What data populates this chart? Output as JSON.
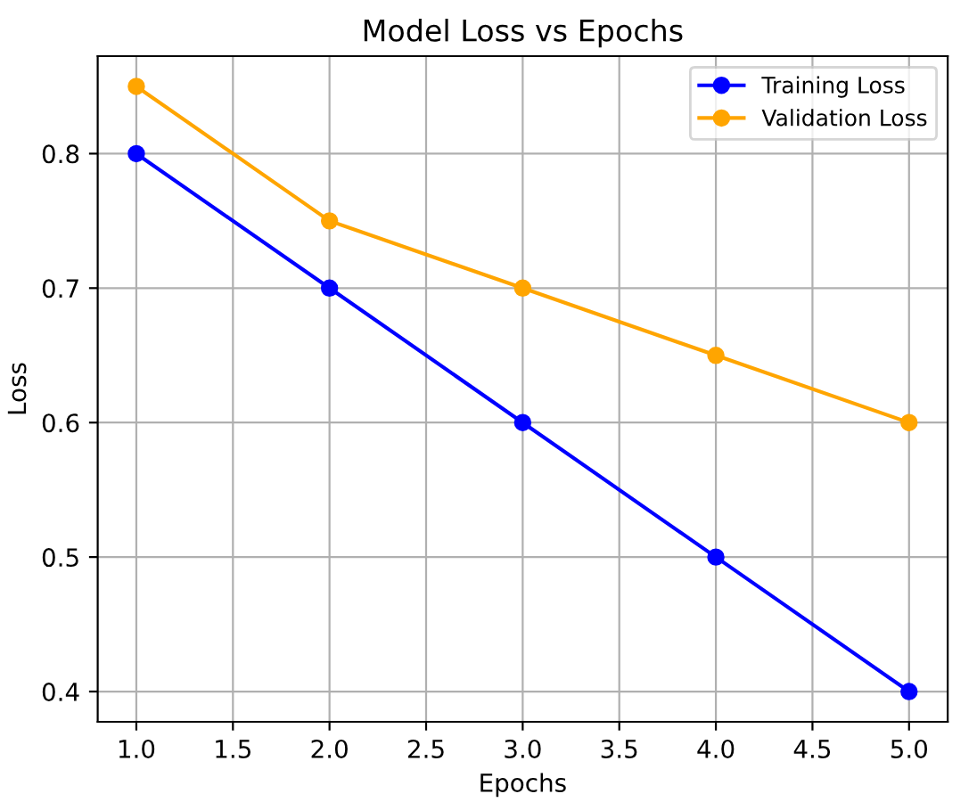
{
  "chart_data": {
    "type": "line",
    "title": "Model Loss vs Epochs",
    "xlabel": "Epochs",
    "ylabel": "Loss",
    "x": [
      1,
      2,
      3,
      4,
      5
    ],
    "series": [
      {
        "name": "Training Loss",
        "color": "#0000ff",
        "values": [
          0.8,
          0.7,
          0.6,
          0.5,
          0.4
        ]
      },
      {
        "name": "Validation Loss",
        "color": "#ffa500",
        "values": [
          0.85,
          0.75,
          0.7,
          0.65,
          0.6
        ]
      }
    ],
    "xlim": [
      0.8,
      5.2
    ],
    "xticks": [
      {
        "value": 1,
        "label": "1.0"
      },
      1.5,
      {
        "value": 2,
        "label": "2.0"
      },
      2.5,
      {
        "value": 3,
        "label": "3.0"
      },
      3.5,
      {
        "value": 4,
        "label": "4.0"
      },
      4.5,
      {
        "value": 5,
        "label": "5.0"
      }
    ],
    "ylim": [
      0.3775,
      0.8725
    ],
    "yticks": [
      0.4,
      0.5,
      0.6,
      0.7,
      0.8
    ],
    "grid": true,
    "legend": "top right",
    "marker": "circle",
    "line_style": "solid"
  }
}
